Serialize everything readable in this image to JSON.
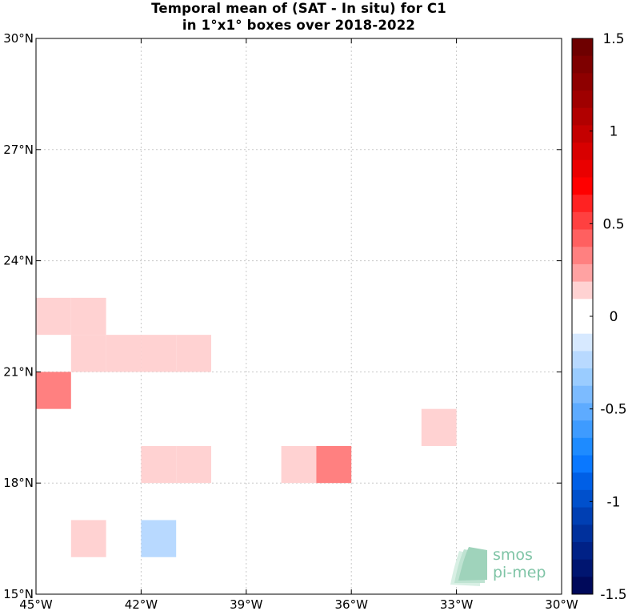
{
  "chart_data": {
    "type": "heatmap",
    "title": "Temporal mean of (SAT - In situ) for C1",
    "subtitle": "in 1°x1° boxes over 2018-2022",
    "x_range": [
      -45,
      -30
    ],
    "y_range": [
      15,
      30
    ],
    "x_ticks": [
      {
        "value": -45,
        "label": "45°W"
      },
      {
        "value": -42,
        "label": "42°W"
      },
      {
        "value": -39,
        "label": "39°W"
      },
      {
        "value": -36,
        "label": "36°W"
      },
      {
        "value": -33,
        "label": "33°W"
      },
      {
        "value": -30,
        "label": "30°W"
      }
    ],
    "y_ticks": [
      {
        "value": 15,
        "label": "15°N"
      },
      {
        "value": 18,
        "label": "18°N"
      },
      {
        "value": 21,
        "label": "21°N"
      },
      {
        "value": 24,
        "label": "24°N"
      },
      {
        "value": 27,
        "label": "27°N"
      },
      {
        "value": 30,
        "label": "30°N"
      }
    ],
    "grid": true,
    "cells": [
      {
        "lon": -45,
        "lat": 22,
        "value": 0.15
      },
      {
        "lon": -44,
        "lat": 22,
        "value": 0.15
      },
      {
        "lon": -44,
        "lat": 21,
        "value": 0.15
      },
      {
        "lon": -43,
        "lat": 21,
        "value": 0.15
      },
      {
        "lon": -42,
        "lat": 21,
        "value": 0.15
      },
      {
        "lon": -41,
        "lat": 21,
        "value": 0.15
      },
      {
        "lon": -45,
        "lat": 20,
        "value": 0.3
      },
      {
        "lon": -34,
        "lat": 19,
        "value": 0.15
      },
      {
        "lon": -42,
        "lat": 18,
        "value": 0.15
      },
      {
        "lon": -41,
        "lat": 18,
        "value": 0.15
      },
      {
        "lon": -38,
        "lat": 18,
        "value": 0.15
      },
      {
        "lon": -37,
        "lat": 18,
        "value": 0.3
      },
      {
        "lon": -44,
        "lat": 16,
        "value": 0.15
      },
      {
        "lon": -42,
        "lat": 16,
        "value": -0.25
      }
    ],
    "colorbar": {
      "min": -1.5,
      "max": 1.5,
      "ticks": [
        {
          "value": 1.5,
          "label": "1.5"
        },
        {
          "value": 1,
          "label": "1"
        },
        {
          "value": 0.5,
          "label": "0.5"
        },
        {
          "value": 0,
          "label": "0"
        },
        {
          "value": -0.5,
          "label": "-0.5"
        },
        {
          "value": -1,
          "label": "-1"
        },
        {
          "value": -1.5,
          "label": "-1.5"
        }
      ],
      "colors_top_to_bottom": [
        "#6e0000",
        "#7e0000",
        "#8e0000",
        "#9f0000",
        "#b10000",
        "#c40000",
        "#d80000",
        "#ea0000",
        "#ff0000",
        "#ff2222",
        "#ff4040",
        "#ff6060",
        "#ff8080",
        "#ffa2a2",
        "#ffd2d2",
        "#ffffff",
        "#ffffff",
        "#d7e9ff",
        "#b8d9ff",
        "#9accff",
        "#7cbbff",
        "#5eabff",
        "#3e9bff",
        "#1e8bff",
        "#0a78ff",
        "#005fe6",
        "#0050cc",
        "#003fb3",
        "#00309c",
        "#002186",
        "#001570",
        "#00095a"
      ]
    }
  },
  "logo": {
    "line1": "smos",
    "line2": "pi-mep"
  }
}
